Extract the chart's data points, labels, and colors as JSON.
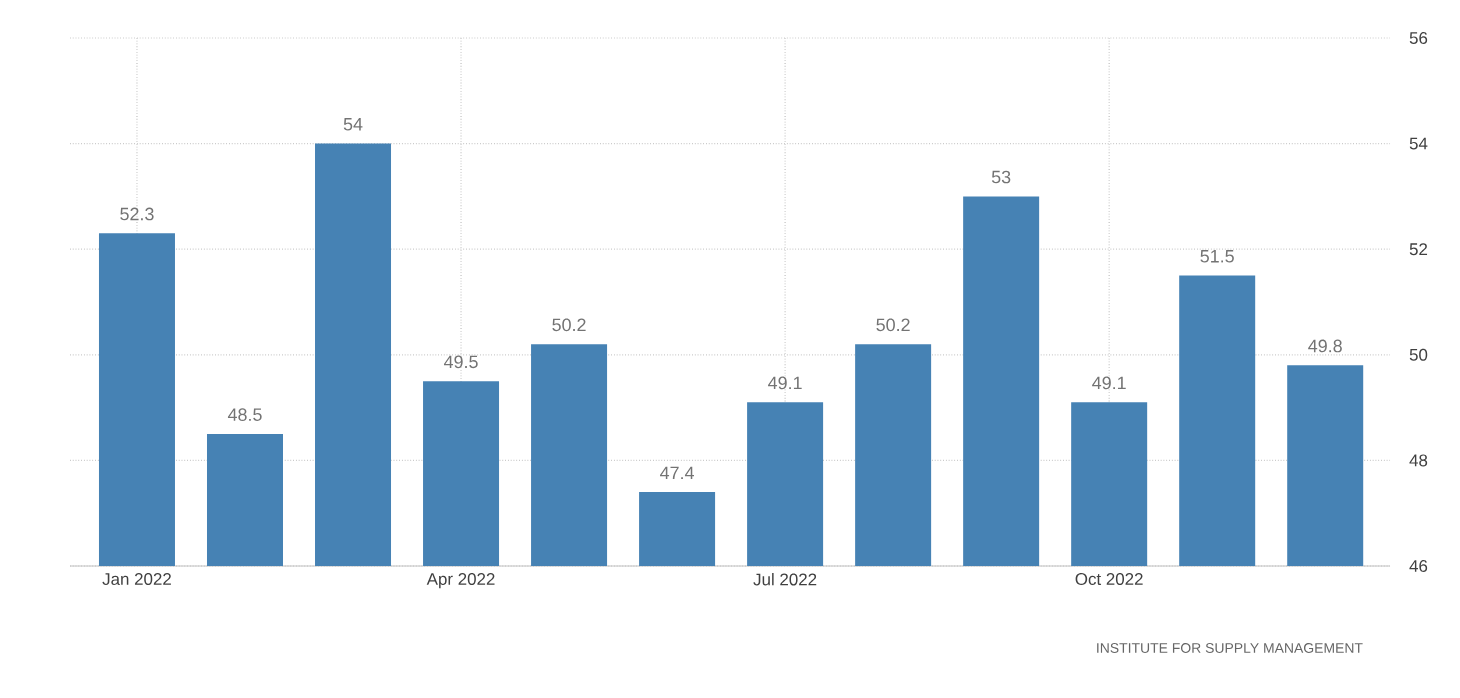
{
  "chart_data": {
    "type": "bar",
    "categories": [
      "Jan 2022",
      null,
      null,
      "Apr 2022",
      null,
      null,
      "Jul 2022",
      null,
      null,
      "Oct 2022",
      null,
      null
    ],
    "values": [
      52.3,
      48.5,
      54,
      49.5,
      50.2,
      47.4,
      49.1,
      50.2,
      53,
      49.1,
      51.5,
      49.8
    ],
    "color": "#4682b4",
    "data_labels": true,
    "ylim": [
      46,
      56
    ],
    "yticks": [
      46,
      48,
      50,
      52,
      54,
      56
    ],
    "grid": true,
    "annotations": [
      "INSTITUTE FOR SUPPLY MANAGEMENT"
    ]
  }
}
